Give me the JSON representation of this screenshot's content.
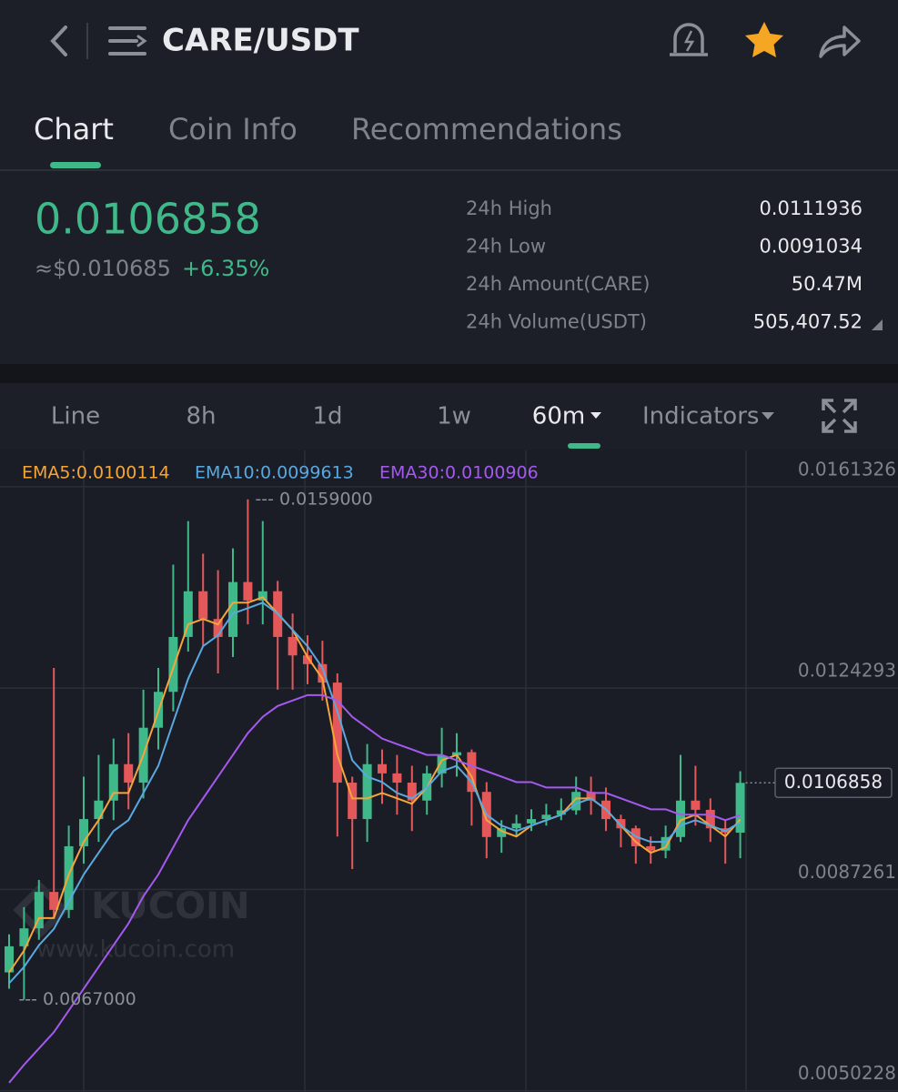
{
  "header": {
    "title": "CARE/USDT"
  },
  "tabs": [
    "Chart",
    "Coin Info",
    "Recommendations"
  ],
  "ticker": {
    "price": "0.0106858",
    "fiat": "≈$0.010685",
    "change": "+6.35%",
    "stats": [
      [
        "24h High",
        "0.0111936"
      ],
      [
        "24h Low",
        "0.0091034"
      ],
      [
        "24h Amount(CARE)",
        "50.47M"
      ],
      [
        "24h Volume(USDT)",
        "505,407.52"
      ]
    ]
  },
  "toolbar": [
    "Line",
    "8h",
    "1d",
    "1w",
    "60m",
    "Indicators"
  ],
  "watermark": {
    "logo": "KUCOIN",
    "url": "www.kucoin.com"
  },
  "chart_data": {
    "type": "candlestick",
    "ylim": [
      0.005,
      0.0168
    ],
    "yticks": [
      0.0050228,
      0.0087261,
      0.0124293,
      0.0161326
    ],
    "grid": true,
    "up_color": "#3fb88a",
    "down_color": "#e4585a",
    "candles": [
      [
        0.0072,
        0.0079,
        0.0069,
        0.00768
      ],
      [
        0.00768,
        0.0084,
        0.0067,
        0.00801
      ],
      [
        0.00801,
        0.0089,
        0.0078,
        0.00868
      ],
      [
        0.00868,
        0.0128,
        0.0082,
        0.00835
      ],
      [
        0.00835,
        0.0099,
        0.0082,
        0.00952
      ],
      [
        0.00952,
        0.0108,
        0.0092,
        0.01002
      ],
      [
        0.01002,
        0.0112,
        0.0096,
        0.01036
      ],
      [
        0.01036,
        0.0115,
        0.01,
        0.01103
      ],
      [
        0.01103,
        0.0116,
        0.0102,
        0.01069
      ],
      [
        0.01069,
        0.0124,
        0.0104,
        0.0117
      ],
      [
        0.0117,
        0.0128,
        0.0113,
        0.01236
      ],
      [
        0.01236,
        0.0147,
        0.012,
        0.01337
      ],
      [
        0.01337,
        0.0155,
        0.0131,
        0.01421
      ],
      [
        0.01421,
        0.0149,
        0.0132,
        0.0137
      ],
      [
        0.0137,
        0.0146,
        0.0127,
        0.01337
      ],
      [
        0.01337,
        0.015,
        0.013,
        0.01438
      ],
      [
        0.01438,
        0.0159,
        0.0136,
        0.01404
      ],
      [
        0.01404,
        0.0155,
        0.0136,
        0.01421
      ],
      [
        0.01421,
        0.0144,
        0.0124,
        0.01337
      ],
      [
        0.01337,
        0.0138,
        0.0124,
        0.01303
      ],
      [
        0.01303,
        0.0134,
        0.0125,
        0.01287
      ],
      [
        0.01287,
        0.0133,
        0.0122,
        0.01253
      ],
      [
        0.01253,
        0.0127,
        0.0097,
        0.01069
      ],
      [
        0.01069,
        0.0108,
        0.0091,
        0.01002
      ],
      [
        0.01002,
        0.0114,
        0.0096,
        0.01103
      ],
      [
        0.01103,
        0.0113,
        0.0103,
        0.01086
      ],
      [
        0.01086,
        0.0112,
        0.0101,
        0.01069
      ],
      [
        0.01069,
        0.011,
        0.0098,
        0.01036
      ],
      [
        0.01036,
        0.011,
        0.0101,
        0.01086
      ],
      [
        0.01086,
        0.0117,
        0.0106,
        0.01119
      ],
      [
        0.01119,
        0.0116,
        0.0108,
        0.01125
      ],
      [
        0.01125,
        0.0113,
        0.0099,
        0.01052
      ],
      [
        0.01052,
        0.0107,
        0.0093,
        0.00969
      ],
      [
        0.00969,
        0.01,
        0.0094,
        0.00985
      ],
      [
        0.00985,
        0.0101,
        0.0097,
        0.00994
      ],
      [
        0.00994,
        0.0102,
        0.0098,
        0.01002
      ],
      [
        0.01002,
        0.0103,
        0.0099,
        0.0101
      ],
      [
        0.0101,
        0.0104,
        0.01,
        0.01018
      ],
      [
        0.01018,
        0.0108,
        0.0101,
        0.01052
      ],
      [
        0.01052,
        0.0108,
        0.0101,
        0.01036
      ],
      [
        0.01036,
        0.0106,
        0.0098,
        0.01002
      ],
      [
        0.01002,
        0.0101,
        0.0095,
        0.00985
      ],
      [
        0.00985,
        0.0099,
        0.0092,
        0.00952
      ],
      [
        0.00952,
        0.0097,
        0.0092,
        0.00944
      ],
      [
        0.00944,
        0.0099,
        0.0093,
        0.00969
      ],
      [
        0.00969,
        0.0112,
        0.0096,
        0.01036
      ],
      [
        0.01036,
        0.011,
        0.0099,
        0.01019
      ],
      [
        0.01019,
        0.0104,
        0.0096,
        0.00985
      ],
      [
        0.00985,
        0.01,
        0.0092,
        0.00977
      ],
      [
        0.00977,
        0.0109,
        0.0093,
        0.0106858
      ]
    ],
    "series": [
      {
        "name": "EMA5:0.0100114",
        "color": "#f5a53a",
        "values": [
          0.0072,
          0.0076,
          0.0082,
          0.0082,
          0.009,
          0.0096,
          0.01,
          0.0105,
          0.0105,
          0.0112,
          0.012,
          0.0128,
          0.0136,
          0.0137,
          0.0136,
          0.014,
          0.014,
          0.0141,
          0.0138,
          0.0135,
          0.013,
          0.0126,
          0.0112,
          0.0104,
          0.0104,
          0.0105,
          0.0104,
          0.0103,
          0.0106,
          0.0111,
          0.0112,
          0.0108,
          0.01,
          0.0098,
          0.0097,
          0.0099,
          0.01,
          0.0101,
          0.0104,
          0.0104,
          0.0102,
          0.0099,
          0.0096,
          0.0094,
          0.0095,
          0.01,
          0.0101,
          0.0099,
          0.0097,
          0.0100114
        ]
      },
      {
        "name": "EMA10:0.0099613",
        "color": "#5aa8e0",
        "values": [
          0.007,
          0.0073,
          0.0077,
          0.008,
          0.0085,
          0.009,
          0.0094,
          0.0098,
          0.01,
          0.0105,
          0.011,
          0.0118,
          0.0126,
          0.0132,
          0.0134,
          0.0138,
          0.0139,
          0.014,
          0.0138,
          0.0135,
          0.0132,
          0.0128,
          0.012,
          0.0111,
          0.0108,
          0.0107,
          0.0105,
          0.0104,
          0.0106,
          0.0109,
          0.011,
          0.0107,
          0.0101,
          0.0099,
          0.0098,
          0.0099,
          0.01,
          0.0101,
          0.0103,
          0.0104,
          0.0102,
          0.0099,
          0.0097,
          0.0096,
          0.0096,
          0.0099,
          0.01,
          0.0099,
          0.0098,
          0.0099613
        ]
      },
      {
        "name": "EMA30:0.0100906",
        "color": "#a559f0",
        "values": [
          0.00517,
          0.0055,
          0.0058,
          0.0061,
          0.0065,
          0.0069,
          0.0073,
          0.0077,
          0.0081,
          0.0086,
          0.009,
          0.0095,
          0.01,
          0.0104,
          0.0108,
          0.0112,
          0.0116,
          0.0119,
          0.0121,
          0.0122,
          0.0123,
          0.0123,
          0.0122,
          0.0119,
          0.0117,
          0.0115,
          0.0114,
          0.0113,
          0.0112,
          0.0112,
          0.0111,
          0.011,
          0.0109,
          0.0108,
          0.0107,
          0.0107,
          0.0106,
          0.0106,
          0.0106,
          0.0105,
          0.0105,
          0.0104,
          0.0103,
          0.0102,
          0.0102,
          0.0101,
          0.0101,
          0.0101,
          0.01,
          0.0100906
        ]
      }
    ],
    "high_marker": {
      "value": 0.0159,
      "label": "--- 0.0159000"
    },
    "low_marker": {
      "value": 0.0067,
      "label": "--- 0.0067000"
    },
    "last_price": 0.0106858
  }
}
